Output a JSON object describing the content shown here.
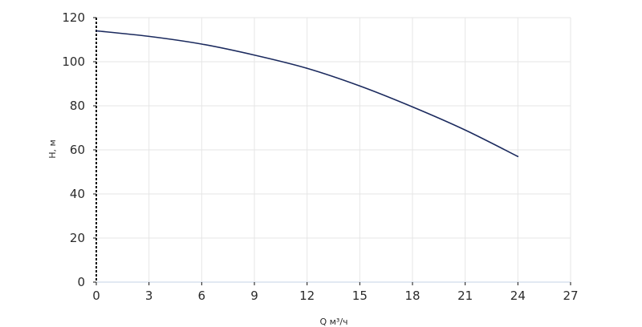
{
  "chart_data": {
    "type": "line",
    "title": "",
    "xlabel": "Q м³/ч",
    "ylabel": "H, м",
    "xlim": [
      0,
      27
    ],
    "ylim": [
      0,
      120
    ],
    "x_ticks": [
      0,
      3,
      6,
      9,
      12,
      15,
      18,
      21,
      24,
      27
    ],
    "y_ticks": [
      0,
      20,
      40,
      60,
      80,
      100,
      120
    ],
    "x_tick_labels": [
      "0",
      "3",
      "6",
      "9",
      "12",
      "15",
      "18",
      "21",
      "24",
      "27"
    ],
    "y_tick_labels": [
      "0",
      "20",
      "40",
      "60",
      "80",
      "100",
      "120"
    ],
    "grid": true,
    "legend": "none",
    "colors": {
      "line": "#1b2a5e",
      "grid": "#e6e6e6",
      "axis": "#111111",
      "axis_bottom": "#d9e2ee"
    },
    "series": [
      {
        "x": [
          0,
          3,
          6,
          9,
          12,
          15,
          18,
          21,
          24
        ],
        "y": [
          114,
          111.5,
          108,
          103,
          97,
          89,
          79.5,
          69,
          57
        ]
      }
    ]
  }
}
